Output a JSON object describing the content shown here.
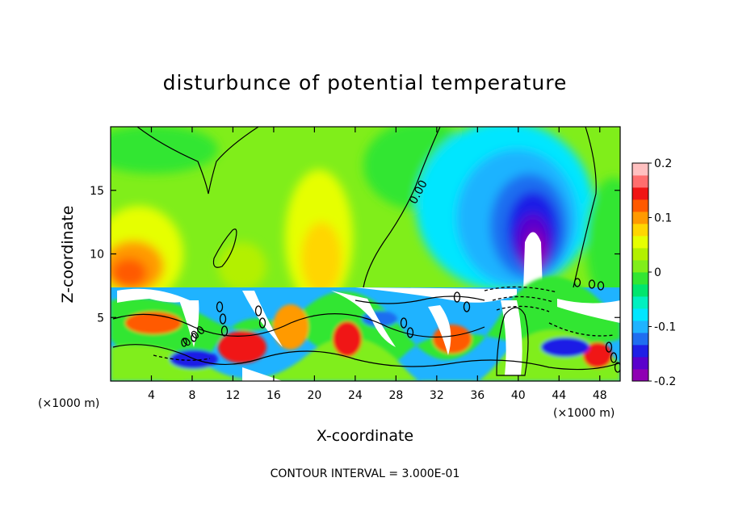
{
  "chart_data": {
    "type": "heatmap",
    "title": "disturbunce of potential temperature",
    "xlabel": "X-coordinate",
    "ylabel": "Z-coordinate",
    "x_unit": "(×1000 m)",
    "x_unit_right": "(×1000 m)",
    "xlim": [
      0,
      50
    ],
    "ylim": [
      0,
      20
    ],
    "x_ticks": [
      "4",
      "8",
      "12",
      "16",
      "20",
      "24",
      "28",
      "32",
      "36",
      "40",
      "44",
      "48"
    ],
    "y_ticks": [
      "5",
      "10",
      "15"
    ],
    "colorbar_ticks": [
      "0.2",
      "0.1",
      "0",
      "-0.1",
      "-0.2"
    ],
    "colorbar_range": [
      -0.2,
      0.2
    ],
    "contour_interval_text": "CONTOUR INTERVAL = 3.000E-01",
    "contour_labels": [
      "0.00",
      "0.00"
    ],
    "colormap": [
      "#8f00b3",
      "#5a00cc",
      "#1f1fe6",
      "#1f6ef0",
      "#1fb3ff",
      "#00e6ff",
      "#00f0c0",
      "#00e66e",
      "#33e633",
      "#80ee1a",
      "#b3f000",
      "#e6ff00",
      "#ffd600",
      "#ff9a00",
      "#ff5a00",
      "#f01414",
      "#ff6e6e",
      "#ffc0c0"
    ]
  }
}
